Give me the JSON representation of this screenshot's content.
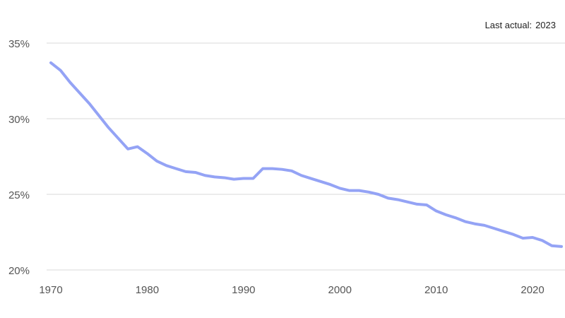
{
  "chart_data": {
    "type": "line",
    "title": "",
    "xlabel": "",
    "ylabel": "",
    "note": {
      "label": "Last actual:",
      "value": "2023"
    },
    "xlim": [
      1970,
      2023
    ],
    "ylim": [
      20,
      35
    ],
    "x_ticks": [
      1970,
      1980,
      1990,
      2000,
      2010,
      2020
    ],
    "y_ticks": [
      {
        "value": 20,
        "label": "20%"
      },
      {
        "value": 25,
        "label": "25%"
      },
      {
        "value": 30,
        "label": "30%"
      },
      {
        "value": 35,
        "label": "35%"
      }
    ],
    "grid": "horizontal",
    "series": [
      {
        "color": "#94a3f5",
        "x": [
          1970,
          1971,
          1972,
          1973,
          1974,
          1975,
          1976,
          1977,
          1978,
          1979,
          1980,
          1981,
          1982,
          1983,
          1984,
          1985,
          1986,
          1987,
          1988,
          1989,
          1990,
          1991,
          1992,
          1993,
          1994,
          1995,
          1996,
          1997,
          1998,
          1999,
          2000,
          2001,
          2002,
          2003,
          2004,
          2005,
          2006,
          2007,
          2008,
          2009,
          2010,
          2011,
          2012,
          2013,
          2014,
          2015,
          2016,
          2017,
          2018,
          2019,
          2020,
          2021,
          2022,
          2023
        ],
        "values": [
          33.7,
          33.2,
          32.4,
          31.7,
          31.0,
          30.2,
          29.4,
          28.7,
          28.0,
          28.15,
          27.7,
          27.2,
          26.9,
          26.7,
          26.5,
          26.45,
          26.25,
          26.15,
          26.1,
          26.0,
          26.05,
          26.05,
          26.7,
          26.7,
          26.65,
          26.55,
          26.25,
          26.05,
          25.85,
          25.65,
          25.4,
          25.25,
          25.25,
          25.15,
          25.0,
          24.75,
          24.65,
          24.5,
          24.35,
          24.3,
          23.9,
          23.65,
          23.45,
          23.2,
          23.05,
          22.95,
          22.75,
          22.55,
          22.35,
          22.1,
          22.15,
          21.95,
          21.6,
          21.55
        ]
      }
    ]
  }
}
